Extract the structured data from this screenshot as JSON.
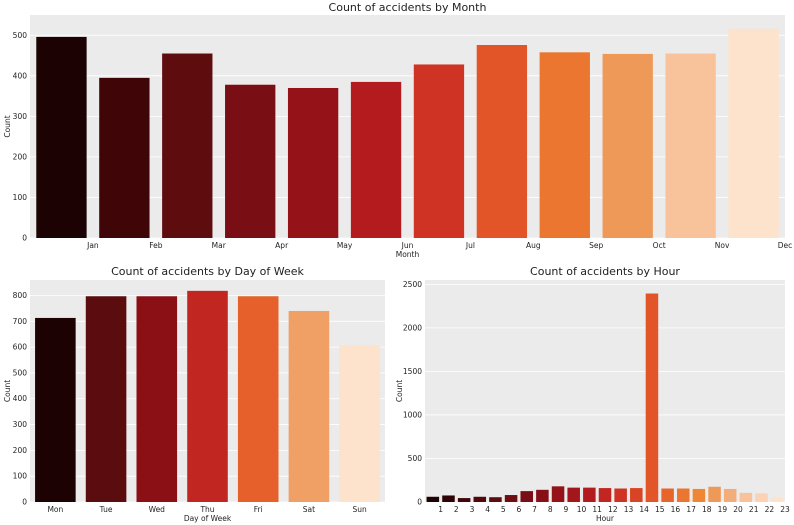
{
  "palette": [
    "#1c0203",
    "#3a0406",
    "#560b0d",
    "#6e0e12",
    "#830f15",
    "#9a1319",
    "#b71c1f",
    "#cc3023",
    "#df4d26",
    "#e8692c",
    "#ee8533",
    "#f0a56f",
    "#fac9a4",
    "#fde2cc"
  ],
  "chart_data": [
    {
      "id": "month",
      "type": "bar",
      "title": "Count of accidents by Month",
      "xlabel": "Month",
      "ylabel": "Count",
      "tick_labels": [
        "Jan",
        "Feb",
        "Mar",
        "Apr",
        "May",
        "Jun",
        "Jul",
        "Aug",
        "Sep",
        "Oct",
        "Nov",
        "Dec"
      ],
      "values": [
        496,
        395,
        455,
        378,
        370,
        385,
        428,
        476,
        458,
        454,
        455,
        516
      ],
      "ylim": [
        0,
        550
      ],
      "yticks": [
        0,
        100,
        200,
        300,
        400,
        500
      ],
      "grid": true
    },
    {
      "id": "dow",
      "type": "bar",
      "title": "Count of accidents by Day of Week",
      "xlabel": "Day of Week",
      "ylabel": "Count",
      "categories": [
        "Mon",
        "Tue",
        "Wed",
        "Thu",
        "Fri",
        "Sat",
        "Sun"
      ],
      "values": [
        713,
        797,
        797,
        818,
        797,
        740,
        607
      ],
      "ylim": [
        0,
        860
      ],
      "yticks": [
        0,
        100,
        200,
        300,
        400,
        500,
        600,
        700,
        800
      ],
      "grid": true
    },
    {
      "id": "hour",
      "type": "bar",
      "title": "Count of accidents by Hour",
      "xlabel": "Hour",
      "ylabel": "Count",
      "tick_labels": [
        "1",
        "2",
        "3",
        "4",
        "5",
        "6",
        "7",
        "8",
        "9",
        "10",
        "11",
        "12",
        "13",
        "14",
        "15",
        "16",
        "17",
        "18",
        "19",
        "20",
        "21",
        "22",
        "23"
      ],
      "values": [
        60,
        75,
        45,
        60,
        55,
        80,
        125,
        140,
        180,
        165,
        165,
        160,
        155,
        160,
        2395,
        155,
        155,
        150,
        175,
        150,
        105,
        100,
        50
      ],
      "ylim": [
        0,
        2550
      ],
      "yticks": [
        0,
        500,
        1000,
        1500,
        2000,
        2500
      ],
      "grid": true
    }
  ]
}
